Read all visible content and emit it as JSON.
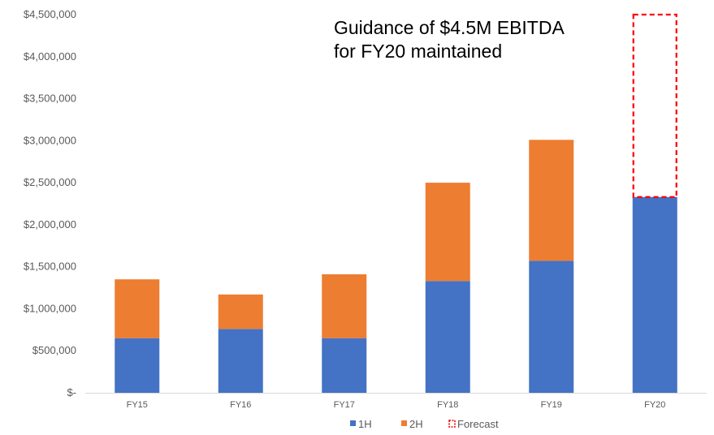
{
  "chart_data": {
    "type": "bar",
    "stacked": true,
    "categories": [
      "FY15",
      "FY16",
      "FY17",
      "FY18",
      "FY19",
      "FY20"
    ],
    "category_labels": [
      "FY15",
      "FY16",
      "FY17",
      "FY18",
      "FY19",
      "FY20"
    ],
    "series": [
      {
        "name": "1H",
        "color": "#4472C4",
        "values": [
          650000,
          760000,
          650000,
          1330000,
          1570000,
          2330000
        ]
      },
      {
        "name": "2H",
        "color": "#ED7D31",
        "values": [
          700000,
          410000,
          760000,
          1170000,
          1440000,
          null
        ]
      }
    ],
    "forecast": {
      "name": "Forecast",
      "category": "FY20",
      "from": 2330000,
      "to": 4500000,
      "color": "#FF0000",
      "style": "dashed-outline"
    },
    "ylim": [
      0,
      4500000
    ],
    "yticks": [
      0,
      500000,
      1000000,
      1500000,
      2000000,
      2500000,
      3000000,
      3500000,
      4000000,
      4500000
    ],
    "ytick_labels": [
      "$-",
      "$500,000",
      "$1,000,000",
      "$1,500,000",
      "$2,000,000",
      "$2,500,000",
      "$3,000,000",
      "$3,500,000",
      "$4,000,000",
      "$4,500,000"
    ],
    "grid": false,
    "legend_position": "bottom",
    "legend": [
      "1H",
      "2H",
      "Forecast"
    ],
    "annotation": [
      "Guidance of $4.5M EBITDA",
      "for FY20 maintained"
    ]
  }
}
